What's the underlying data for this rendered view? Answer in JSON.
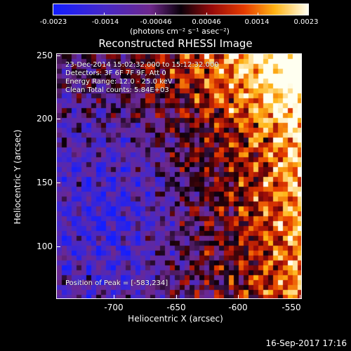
{
  "colorbar": {
    "ticks": [
      "-0.0023",
      "-0.0014",
      "-0.00046",
      "0.00046",
      "0.0014",
      "0.0023"
    ],
    "unit": "(photons cm⁻² s⁻¹ asec⁻²)",
    "range": [
      -0.0023,
      0.0023
    ]
  },
  "plot": {
    "title": "Reconstructed RHESSI Image",
    "info_lines": [
      "23-Dec-2014 15:02:32.000 to 15:12:32.000",
      "Detectors: 3F 6F 7F 9F, Att 0",
      "Energy Range: 12.0 - 25.0 keV",
      "Clean     Total counts: 5.84E+03"
    ],
    "peak_label": "Position of Peak = [-583,234]",
    "xlabel": "Heliocentric X (arcsec)",
    "ylabel": "Heliocentric Y (arcsec)",
    "x_ticks": [
      "-700",
      "-650",
      "-600",
      "-550"
    ],
    "y_ticks": [
      "250",
      "200",
      "150",
      "100"
    ],
    "x_range": [
      -740,
      -545
    ],
    "y_range": [
      56,
      252
    ]
  },
  "footer": {
    "timestamp": "16-Sep-2017 17:16"
  }
}
